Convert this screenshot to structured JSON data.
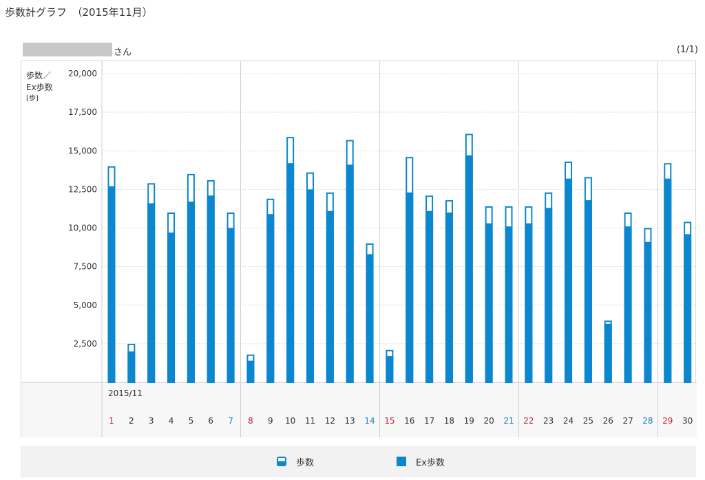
{
  "page": {
    "title": "歩数計グラフ　（2015年11月）",
    "user_suffix": "さん",
    "page_count": "(1/1)"
  },
  "colors": {
    "bar": "#0a87cf",
    "weekday": "#333333",
    "saturday": "#1a7fbf",
    "sunday": "#c0223a",
    "grid": "#d9d9d9"
  },
  "chart_data": {
    "type": "bar",
    "ylabel_lines": [
      "歩数／",
      "Ex歩数",
      "[歩]"
    ],
    "yticks": [
      "20,000",
      "17,500",
      "15,000",
      "12,500",
      "10,000",
      "7,500",
      "5,000",
      "2,500"
    ],
    "ylim": [
      0,
      20000
    ],
    "grid": true,
    "x_month_label": "2015/11",
    "categories": [
      "1",
      "2",
      "3",
      "4",
      "5",
      "6",
      "7",
      "8",
      "9",
      "10",
      "11",
      "12",
      "13",
      "14",
      "15",
      "16",
      "17",
      "18",
      "19",
      "20",
      "21",
      "22",
      "23",
      "24",
      "25",
      "26",
      "27",
      "28",
      "29",
      "30"
    ],
    "day_colors": [
      "sunday",
      "weekday",
      "weekday",
      "weekday",
      "weekday",
      "weekday",
      "saturday",
      "sunday",
      "weekday",
      "weekday",
      "weekday",
      "weekday",
      "weekday",
      "saturday",
      "sunday",
      "weekday",
      "weekday",
      "weekday",
      "weekday",
      "weekday",
      "saturday",
      "sunday",
      "weekday",
      "weekday",
      "weekday",
      "weekday",
      "weekday",
      "saturday",
      "sunday",
      "weekday"
    ],
    "series": [
      {
        "name": "歩数",
        "values": [
          14000,
          2500,
          12900,
          11000,
          13500,
          13100,
          11000,
          1800,
          11900,
          15900,
          13600,
          12300,
          15700,
          9000,
          2100,
          14600,
          12100,
          11800,
          16100,
          11400,
          11400,
          11400,
          12300,
          14300,
          13300,
          4000,
          11000,
          10000,
          14200,
          10400
        ]
      },
      {
        "name": "Ex歩数",
        "values": [
          12700,
          2000,
          11600,
          9700,
          11700,
          12100,
          10000,
          1400,
          10900,
          14200,
          12500,
          11100,
          14100,
          8300,
          1700,
          12300,
          11100,
          11000,
          14700,
          10300,
          10100,
          10300,
          11300,
          13200,
          11800,
          3800,
          10100,
          9100,
          13200,
          9600
        ]
      }
    ],
    "legend": [
      "歩数",
      "Ex歩数"
    ],
    "legend_position": "bottom"
  }
}
